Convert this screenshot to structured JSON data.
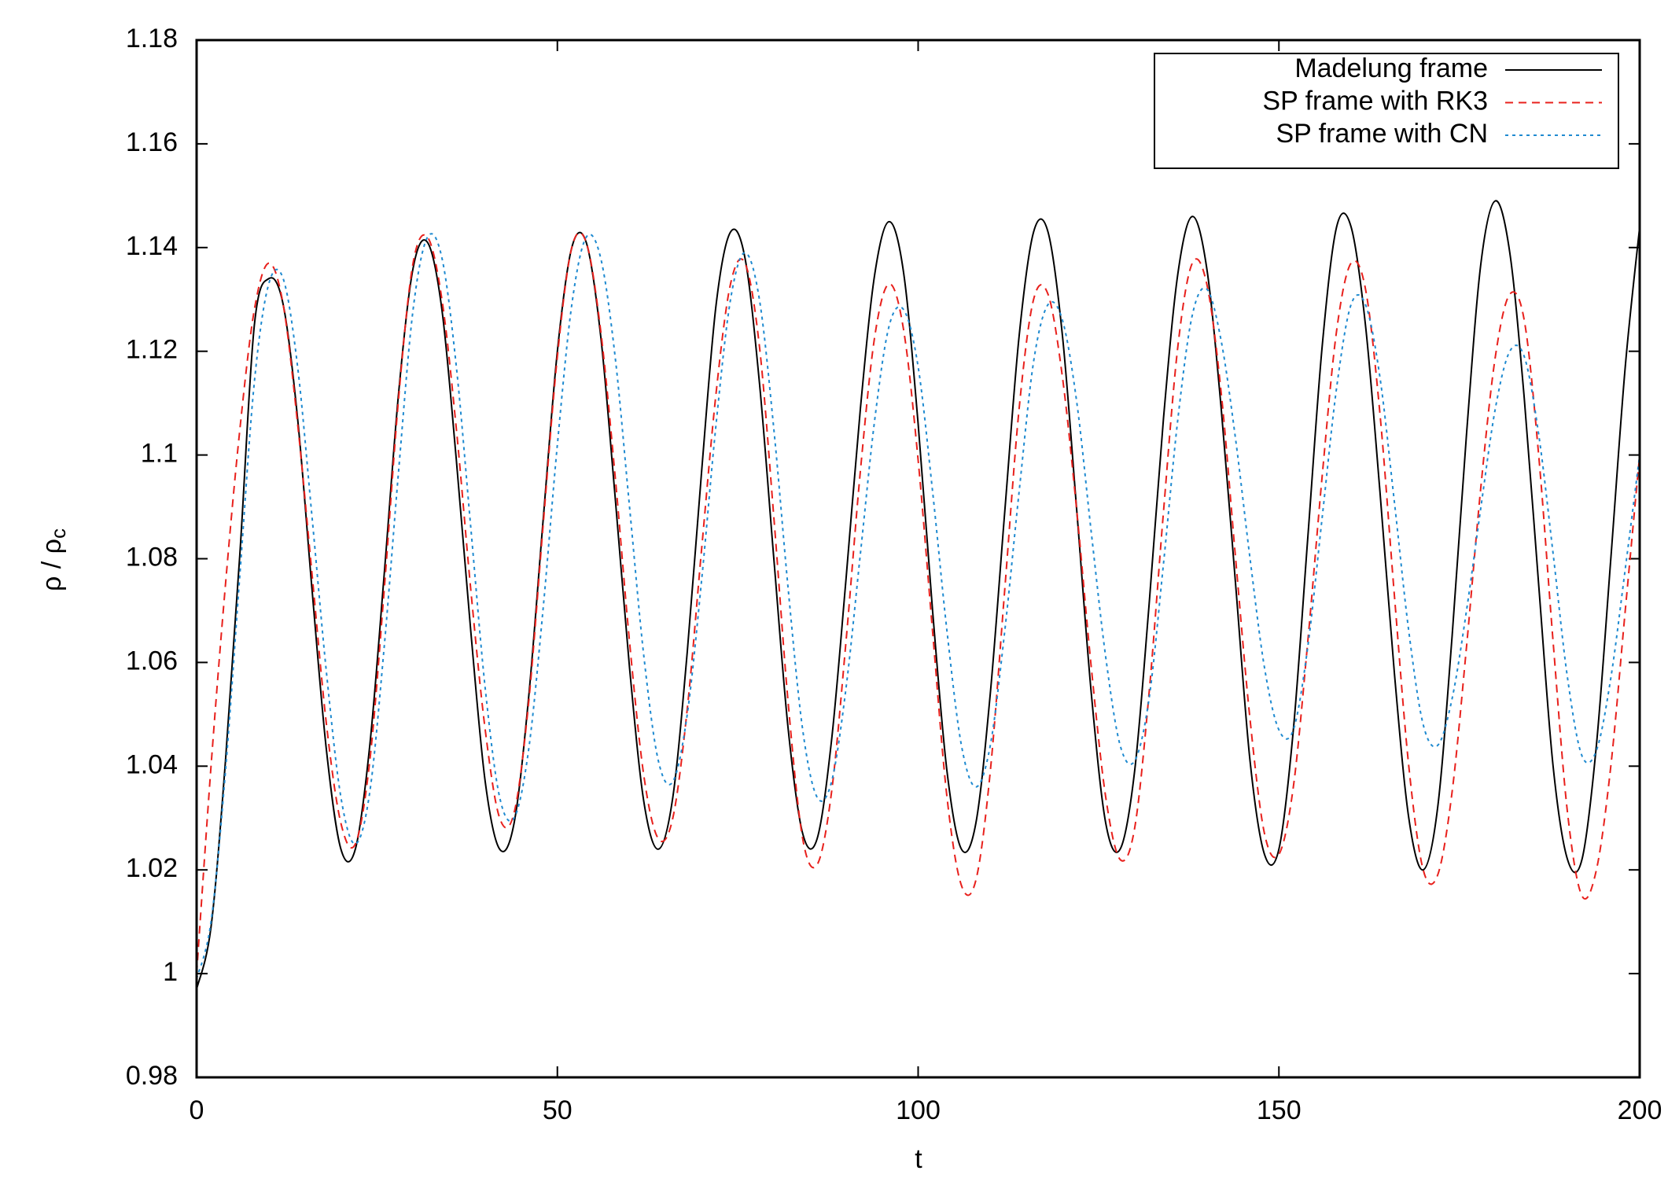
{
  "chart_data": {
    "type": "line",
    "xlabel": "t",
    "ylabel": {
      "main": "ρ / ρ",
      "sub": "c"
    },
    "xlim": [
      0,
      200
    ],
    "ylim": [
      0.98,
      1.18
    ],
    "xticks": [
      0,
      50,
      100,
      150,
      200
    ],
    "yticks": [
      0.98,
      1,
      1.02,
      1.04,
      1.06,
      1.08,
      1.1,
      1.12,
      1.14,
      1.16,
      1.18
    ],
    "legend": "top-right",
    "x": [
      0,
      2,
      4,
      6,
      8,
      10,
      12,
      14,
      16,
      18,
      20,
      22,
      24,
      26,
      28,
      30,
      32,
      34,
      36,
      38,
      40,
      42,
      44,
      46,
      48,
      50,
      52,
      54,
      56,
      58,
      60,
      62,
      64,
      66,
      68,
      70,
      72,
      74,
      76,
      78,
      80,
      82,
      84,
      86,
      88,
      90,
      92,
      94,
      96,
      98,
      100,
      102,
      104,
      106,
      108,
      110,
      112,
      114,
      116,
      118,
      120,
      122,
      124,
      126,
      128,
      130,
      132,
      134,
      136,
      138,
      140,
      142,
      144,
      146,
      148,
      150,
      152,
      154,
      156,
      158,
      160,
      162,
      164,
      166,
      168,
      170,
      172,
      174,
      176,
      178,
      180,
      182,
      184,
      186,
      188,
      190,
      192,
      194,
      196,
      198,
      200
    ],
    "series": [
      {
        "name": "Madelung frame",
        "color": "#000000",
        "dash": "solid",
        "values": [
          0.997,
          1.009,
          1.041,
          1.081,
          1.125,
          1.134,
          1.129,
          1.107,
          1.074,
          1.043,
          1.024,
          1.024,
          1.044,
          1.077,
          1.112,
          1.136,
          1.141,
          1.128,
          1.099,
          1.066,
          1.037,
          1.024,
          1.029,
          1.053,
          1.087,
          1.12,
          1.14,
          1.141,
          1.123,
          1.092,
          1.059,
          1.033,
          1.024,
          1.034,
          1.062,
          1.097,
          1.129,
          1.143,
          1.138,
          1.114,
          1.08,
          1.047,
          1.027,
          1.026,
          1.045,
          1.076,
          1.109,
          1.135,
          1.145,
          1.135,
          1.106,
          1.07,
          1.039,
          1.024,
          1.029,
          1.054,
          1.089,
          1.123,
          1.143,
          1.143,
          1.123,
          1.089,
          1.054,
          1.029,
          1.024,
          1.039,
          1.071,
          1.107,
          1.135,
          1.146,
          1.136,
          1.109,
          1.075,
          1.041,
          1.023,
          1.024,
          1.047,
          1.084,
          1.121,
          1.144,
          1.144,
          1.125,
          1.093,
          1.058,
          1.03,
          1.02,
          1.032,
          1.065,
          1.104,
          1.137,
          1.149,
          1.139,
          1.111,
          1.075,
          1.04,
          1.022,
          1.022,
          1.044,
          1.08,
          1.117,
          1.144
        ]
      },
      {
        "name": "SP frame with RK3",
        "color": "#e8201c",
        "dash": "dashed",
        "values": [
          1.0,
          1.04,
          1.075,
          1.105,
          1.128,
          1.137,
          1.129,
          1.106,
          1.077,
          1.048,
          1.029,
          1.025,
          1.041,
          1.074,
          1.111,
          1.137,
          1.142,
          1.13,
          1.105,
          1.074,
          1.047,
          1.03,
          1.031,
          1.052,
          1.086,
          1.119,
          1.14,
          1.141,
          1.124,
          1.096,
          1.064,
          1.038,
          1.026,
          1.03,
          1.051,
          1.082,
          1.112,
          1.133,
          1.137,
          1.121,
          1.088,
          1.052,
          1.026,
          1.021,
          1.035,
          1.064,
          1.097,
          1.123,
          1.133,
          1.124,
          1.099,
          1.066,
          1.034,
          1.017,
          1.018,
          1.039,
          1.074,
          1.109,
          1.13,
          1.131,
          1.115,
          1.089,
          1.059,
          1.034,
          1.022,
          1.028,
          1.054,
          1.089,
          1.121,
          1.137,
          1.133,
          1.112,
          1.08,
          1.049,
          1.027,
          1.023,
          1.036,
          1.064,
          1.096,
          1.124,
          1.137,
          1.132,
          1.108,
          1.073,
          1.04,
          1.02,
          1.019,
          1.035,
          1.063,
          1.094,
          1.119,
          1.131,
          1.126,
          1.1,
          1.064,
          1.031,
          1.015,
          1.02,
          1.04,
          1.07,
          1.1
        ]
      },
      {
        "name": "SP frame with CN",
        "color": "#1f8ad0",
        "dash": "dotted",
        "values": [
          0.999,
          1.01,
          1.039,
          1.077,
          1.114,
          1.133,
          1.134,
          1.117,
          1.088,
          1.058,
          1.034,
          1.025,
          1.035,
          1.063,
          1.097,
          1.128,
          1.142,
          1.138,
          1.117,
          1.086,
          1.055,
          1.034,
          1.03,
          1.043,
          1.07,
          1.102,
          1.129,
          1.142,
          1.138,
          1.119,
          1.09,
          1.061,
          1.041,
          1.037,
          1.05,
          1.076,
          1.106,
          1.13,
          1.139,
          1.13,
          1.105,
          1.074,
          1.047,
          1.034,
          1.037,
          1.055,
          1.081,
          1.107,
          1.125,
          1.128,
          1.117,
          1.093,
          1.066,
          1.044,
          1.036,
          1.044,
          1.066,
          1.093,
          1.118,
          1.129,
          1.126,
          1.11,
          1.085,
          1.061,
          1.044,
          1.041,
          1.053,
          1.079,
          1.107,
          1.127,
          1.132,
          1.122,
          1.103,
          1.08,
          1.059,
          1.047,
          1.047,
          1.063,
          1.088,
          1.113,
          1.129,
          1.129,
          1.115,
          1.091,
          1.066,
          1.048,
          1.044,
          1.053,
          1.07,
          1.09,
          1.109,
          1.12,
          1.119,
          1.104,
          1.081,
          1.057,
          1.042,
          1.043,
          1.057,
          1.078,
          1.1
        ]
      }
    ]
  }
}
